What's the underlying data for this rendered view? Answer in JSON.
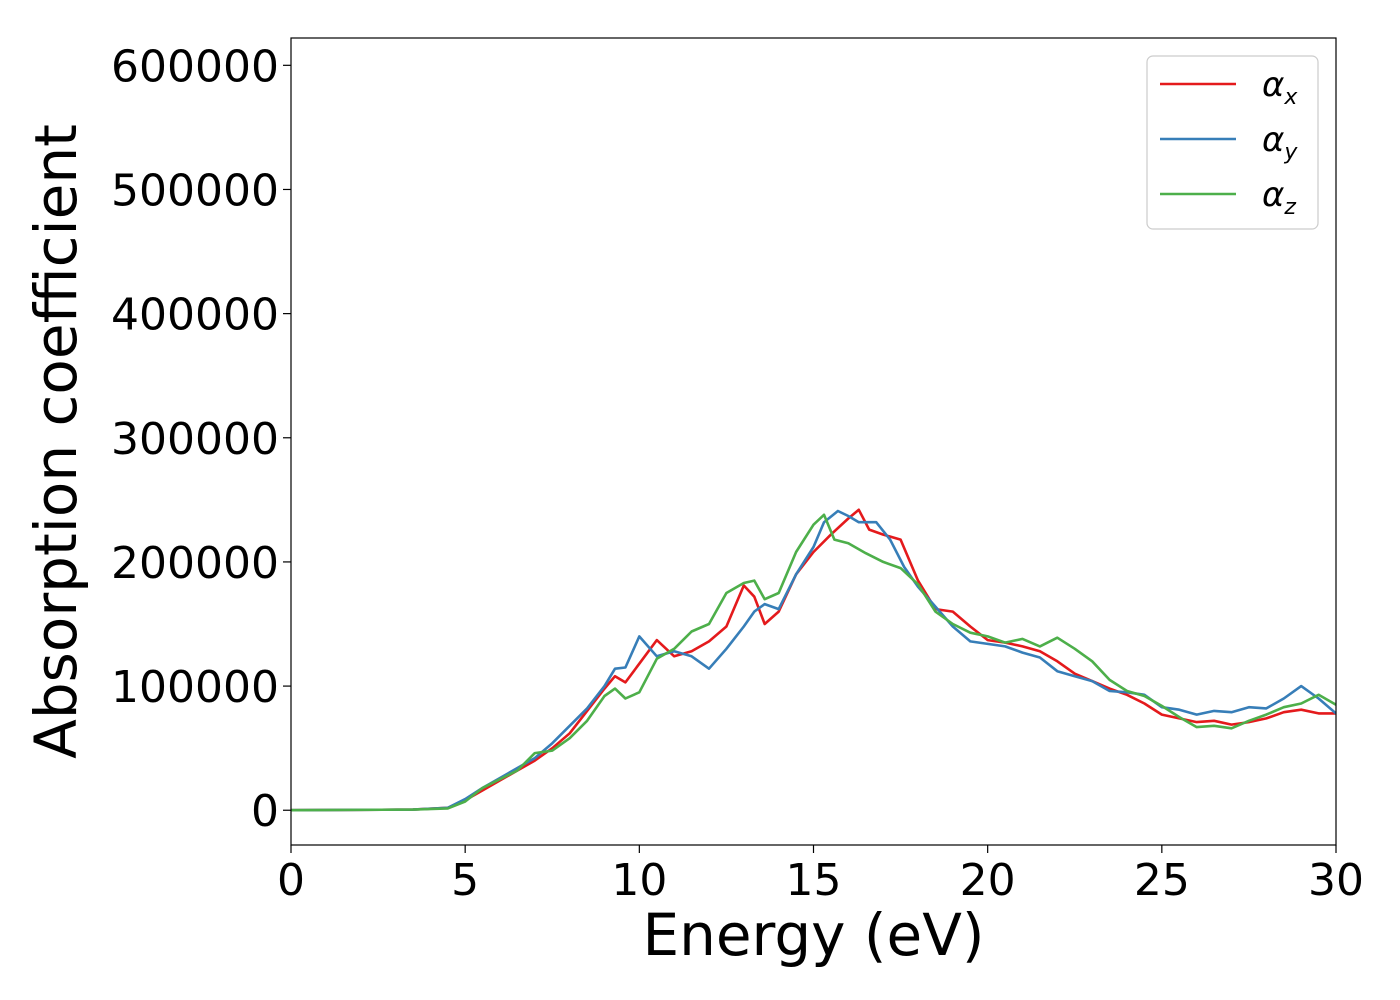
{
  "chart_data": {
    "type": "line",
    "xlabel": "Energy (eV)",
    "ylabel": "Absorption coefficient",
    "xlim": [
      0,
      30
    ],
    "ylim": [
      -28000,
      622000
    ],
    "xticks": [
      0,
      5,
      10,
      15,
      20,
      25,
      30
    ],
    "yticks": [
      0,
      100000,
      200000,
      300000,
      400000,
      500000,
      600000
    ],
    "xtick_labels": [
      "0",
      "5",
      "10",
      "15",
      "20",
      "25",
      "30"
    ],
    "ytick_labels": [
      "0",
      "100000",
      "200000",
      "300000",
      "400000",
      "500000",
      "600000"
    ],
    "grid": false,
    "legend_position": "top-right",
    "series": [
      {
        "name": "α_x",
        "name_base": "α",
        "name_sub": "x",
        "color": "#e41a1c",
        "x": [
          0,
          3.5,
          4.5,
          5.0,
          5.5,
          6.0,
          6.5,
          7.0,
          7.5,
          8.0,
          8.5,
          9.0,
          9.3,
          9.6,
          10.0,
          10.5,
          11.0,
          11.5,
          12.0,
          12.5,
          13.0,
          13.3,
          13.6,
          14.0,
          14.5,
          15.0,
          15.5,
          16.0,
          16.3,
          16.6,
          17.0,
          17.5,
          18.0,
          18.5,
          19.0,
          19.5,
          20.0,
          20.5,
          21.0,
          21.5,
          22.0,
          22.5,
          23.0,
          23.5,
          24.0,
          24.5,
          25.0,
          25.5,
          26.0,
          26.5,
          27.0,
          27.5,
          28.0,
          28.5,
          29.0,
          29.5,
          30.0
        ],
        "y": [
          0,
          500,
          2000,
          8000,
          16000,
          24000,
          32000,
          40000,
          50000,
          62000,
          80000,
          98000,
          108000,
          103000,
          118000,
          137000,
          124000,
          128000,
          136000,
          148000,
          181000,
          172000,
          150000,
          160000,
          190000,
          208000,
          222000,
          235000,
          242000,
          226000,
          222000,
          218000,
          185000,
          162000,
          160000,
          148000,
          137000,
          135000,
          132000,
          128000,
          120000,
          110000,
          104000,
          98000,
          93000,
          86000,
          77000,
          74000,
          71000,
          72000,
          69000,
          71000,
          74000,
          79000,
          81000,
          78000,
          78000
        ]
      },
      {
        "name": "α_y",
        "name_base": "α",
        "name_sub": "y",
        "color": "#377eb8",
        "x": [
          0,
          3.5,
          4.5,
          5.0,
          5.5,
          6.0,
          6.5,
          7.0,
          7.5,
          8.0,
          8.5,
          9.0,
          9.3,
          9.6,
          10.0,
          10.5,
          11.0,
          11.5,
          12.0,
          12.5,
          13.0,
          13.3,
          13.6,
          14.0,
          14.5,
          15.0,
          15.3,
          15.7,
          16.0,
          16.3,
          16.8,
          17.2,
          17.6,
          18.0,
          18.5,
          19.0,
          19.5,
          20.0,
          20.5,
          21.0,
          21.5,
          22.0,
          22.5,
          23.0,
          23.5,
          24.0,
          24.5,
          25.0,
          25.5,
          26.0,
          26.5,
          27.0,
          27.5,
          28.0,
          28.5,
          29.0,
          29.5,
          30.0
        ],
        "y": [
          0,
          500,
          2000,
          9000,
          18000,
          26000,
          34000,
          42000,
          54000,
          68000,
          82000,
          100000,
          114000,
          115000,
          140000,
          124000,
          128000,
          124000,
          114000,
          130000,
          148000,
          160000,
          166000,
          162000,
          190000,
          212000,
          232000,
          241000,
          237000,
          232000,
          232000,
          218000,
          196000,
          180000,
          164000,
          148000,
          136000,
          134000,
          132000,
          127000,
          123000,
          112000,
          108000,
          104000,
          96000,
          95000,
          93000,
          83000,
          81000,
          77000,
          80000,
          79000,
          83000,
          82000,
          90000,
          100000,
          90000,
          78000
        ]
      },
      {
        "name": "α_z",
        "name_base": "α",
        "name_sub": "z",
        "color": "#4daf4a",
        "x": [
          0,
          3.5,
          4.5,
          5.0,
          5.5,
          6.0,
          6.5,
          7.0,
          7.5,
          8.0,
          8.5,
          9.0,
          9.3,
          9.6,
          10.0,
          10.5,
          11.0,
          11.5,
          12.0,
          12.5,
          13.0,
          13.3,
          13.6,
          14.0,
          14.5,
          15.0,
          15.3,
          15.6,
          16.0,
          16.5,
          17.0,
          17.5,
          18.0,
          18.5,
          19.0,
          19.5,
          20.0,
          20.5,
          21.0,
          21.5,
          22.0,
          22.5,
          23.0,
          23.5,
          24.0,
          24.5,
          25.0,
          25.5,
          26.0,
          26.5,
          27.0,
          27.5,
          28.0,
          28.5,
          29.0,
          29.5,
          30.0
        ],
        "y": [
          0,
          500,
          1500,
          7000,
          18000,
          25000,
          32000,
          46000,
          48000,
          58000,
          72000,
          92000,
          98000,
          90000,
          95000,
          122000,
          130000,
          144000,
          150000,
          175000,
          183000,
          185000,
          170000,
          175000,
          208000,
          230000,
          238000,
          218000,
          215000,
          207000,
          200000,
          195000,
          182000,
          160000,
          150000,
          143000,
          140000,
          135000,
          138000,
          132000,
          139000,
          130000,
          120000,
          105000,
          96000,
          92000,
          84000,
          75000,
          67000,
          68000,
          66000,
          72000,
          77000,
          83000,
          86000,
          93000,
          85000
        ]
      }
    ]
  }
}
